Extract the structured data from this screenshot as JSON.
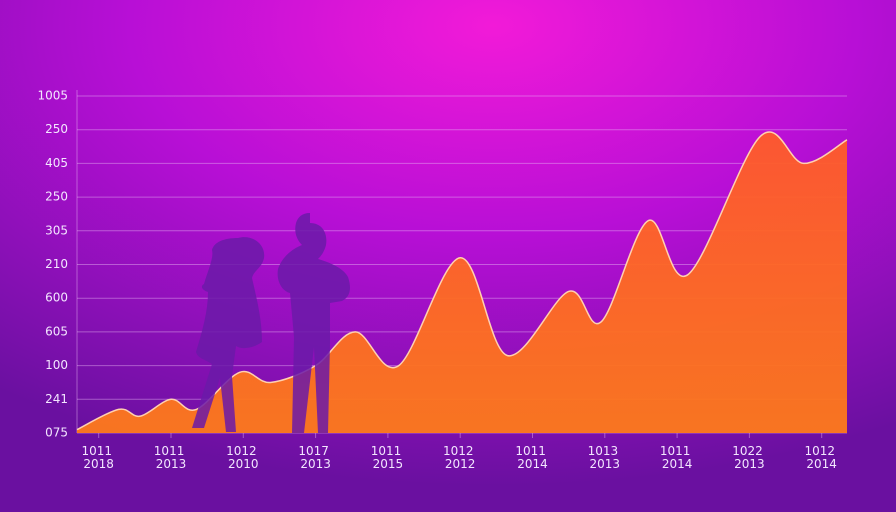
{
  "chart_data": {
    "type": "area",
    "color": "#ff6a1e",
    "xlim": [
      -0.6,
      20.7
    ],
    "ylim": [
      0,
      10
    ],
    "xticks": [
      {
        "value": 0,
        "label": "1011 2018"
      },
      {
        "value": 2,
        "label": "1011 2013"
      },
      {
        "value": 4,
        "label": "1012 2010"
      },
      {
        "value": 6,
        "label": "1017 2013"
      },
      {
        "value": 8,
        "label": "1011 2015"
      },
      {
        "value": 10,
        "label": "1012 2012"
      },
      {
        "value": 12,
        "label": "1011 2014"
      },
      {
        "value": 14,
        "label": "1013 2013"
      },
      {
        "value": 16,
        "label": "1011 2014"
      },
      {
        "value": 18,
        "label": "1022 2013"
      },
      {
        "value": 20,
        "label": "1012 2014"
      }
    ],
    "yticks": [
      {
        "value": 0,
        "label": "075"
      },
      {
        "value": 1,
        "label": "241"
      },
      {
        "value": 2,
        "label": "100"
      },
      {
        "value": 3,
        "label": "605"
      },
      {
        "value": 4,
        "label": "600"
      },
      {
        "value": 5,
        "label": "210"
      },
      {
        "value": 6,
        "label": "305"
      },
      {
        "value": 7,
        "label": "250"
      },
      {
        "value": 8,
        "label": "405"
      },
      {
        "value": 9,
        "label": "250"
      },
      {
        "value": 10,
        "label": "1005"
      }
    ],
    "grid": true,
    "x": [
      -0.6,
      0.55,
      1.15,
      2,
      2.7,
      3.9,
      4.75,
      6,
      7.1,
      8.3,
      10,
      11.3,
      13,
      13.9,
      15.2,
      16.3,
      18.3,
      19.5,
      20.7
    ],
    "values": [
      0.1,
      0.7,
      0.5,
      1.0,
      0.7,
      1.8,
      1.5,
      2.0,
      3.0,
      2.0,
      5.2,
      2.3,
      4.2,
      3.3,
      6.3,
      4.7,
      8.8,
      8.0,
      8.7
    ]
  }
}
